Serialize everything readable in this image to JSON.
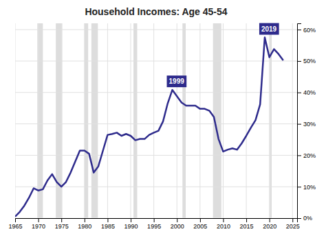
{
  "chart_data": {
    "type": "line",
    "title": "Household Incomes: Age 45-54",
    "color": "#2E2B8C",
    "grid": true,
    "xlim": [
      1965,
      2026
    ],
    "ylim": [
      0,
      0.62
    ],
    "xticks": [
      1965,
      1970,
      1975,
      1980,
      1985,
      1990,
      1995,
      2000,
      2005,
      2010,
      2015,
      2020,
      2025
    ],
    "yticks": [
      {
        "value": 0.0,
        "label": "0%"
      },
      {
        "value": 0.1,
        "label": "10%"
      },
      {
        "value": 0.2,
        "label": "20%"
      },
      {
        "value": 0.3,
        "label": "30%"
      },
      {
        "value": 0.4,
        "label": "40%"
      },
      {
        "value": 0.5,
        "label": "50%"
      },
      {
        "value": 0.6,
        "label": "60%"
      }
    ],
    "bands": [
      [
        1969.8,
        1971.0
      ],
      [
        1973.8,
        1975.2
      ],
      [
        1980.0,
        1980.8
      ],
      [
        1981.5,
        1982.9
      ],
      [
        1990.6,
        1991.4
      ],
      [
        2001.2,
        2001.9
      ],
      [
        2007.8,
        2009.6
      ],
      [
        2020.1,
        2020.5
      ]
    ],
    "annotations": [
      {
        "x": 1999,
        "y": 0.408,
        "text": "1999"
      },
      {
        "x": 2019,
        "y": 0.575,
        "text": "2019"
      }
    ],
    "x": [
      1965,
      1966,
      1967,
      1968,
      1969,
      1970,
      1971,
      1972,
      1973,
      1974,
      1975,
      1976,
      1977,
      1978,
      1979,
      1980,
      1981,
      1982,
      1983,
      1984,
      1985,
      1986,
      1987,
      1988,
      1989,
      1990,
      1991,
      1992,
      1993,
      1994,
      1995,
      1996,
      1997,
      1998,
      1999,
      2000,
      2001,
      2002,
      2003,
      2004,
      2005,
      2006,
      2007,
      2008,
      2009,
      2010,
      2011,
      2012,
      2013,
      2014,
      2015,
      2016,
      2017,
      2018,
      2019,
      2020,
      2021,
      2022,
      2023
    ],
    "values": [
      0.005,
      0.02,
      0.04,
      0.065,
      0.095,
      0.088,
      0.092,
      0.12,
      0.14,
      0.115,
      0.1,
      0.115,
      0.145,
      0.18,
      0.215,
      0.215,
      0.205,
      0.145,
      0.165,
      0.215,
      0.265,
      0.268,
      0.272,
      0.262,
      0.268,
      0.262,
      0.248,
      0.252,
      0.252,
      0.265,
      0.272,
      0.278,
      0.308,
      0.365,
      0.408,
      0.388,
      0.368,
      0.358,
      0.358,
      0.358,
      0.348,
      0.348,
      0.342,
      0.322,
      0.252,
      0.212,
      0.218,
      0.222,
      0.218,
      0.238,
      0.262,
      0.288,
      0.312,
      0.362,
      0.575,
      0.512,
      0.538,
      0.522,
      0.502
    ]
  }
}
